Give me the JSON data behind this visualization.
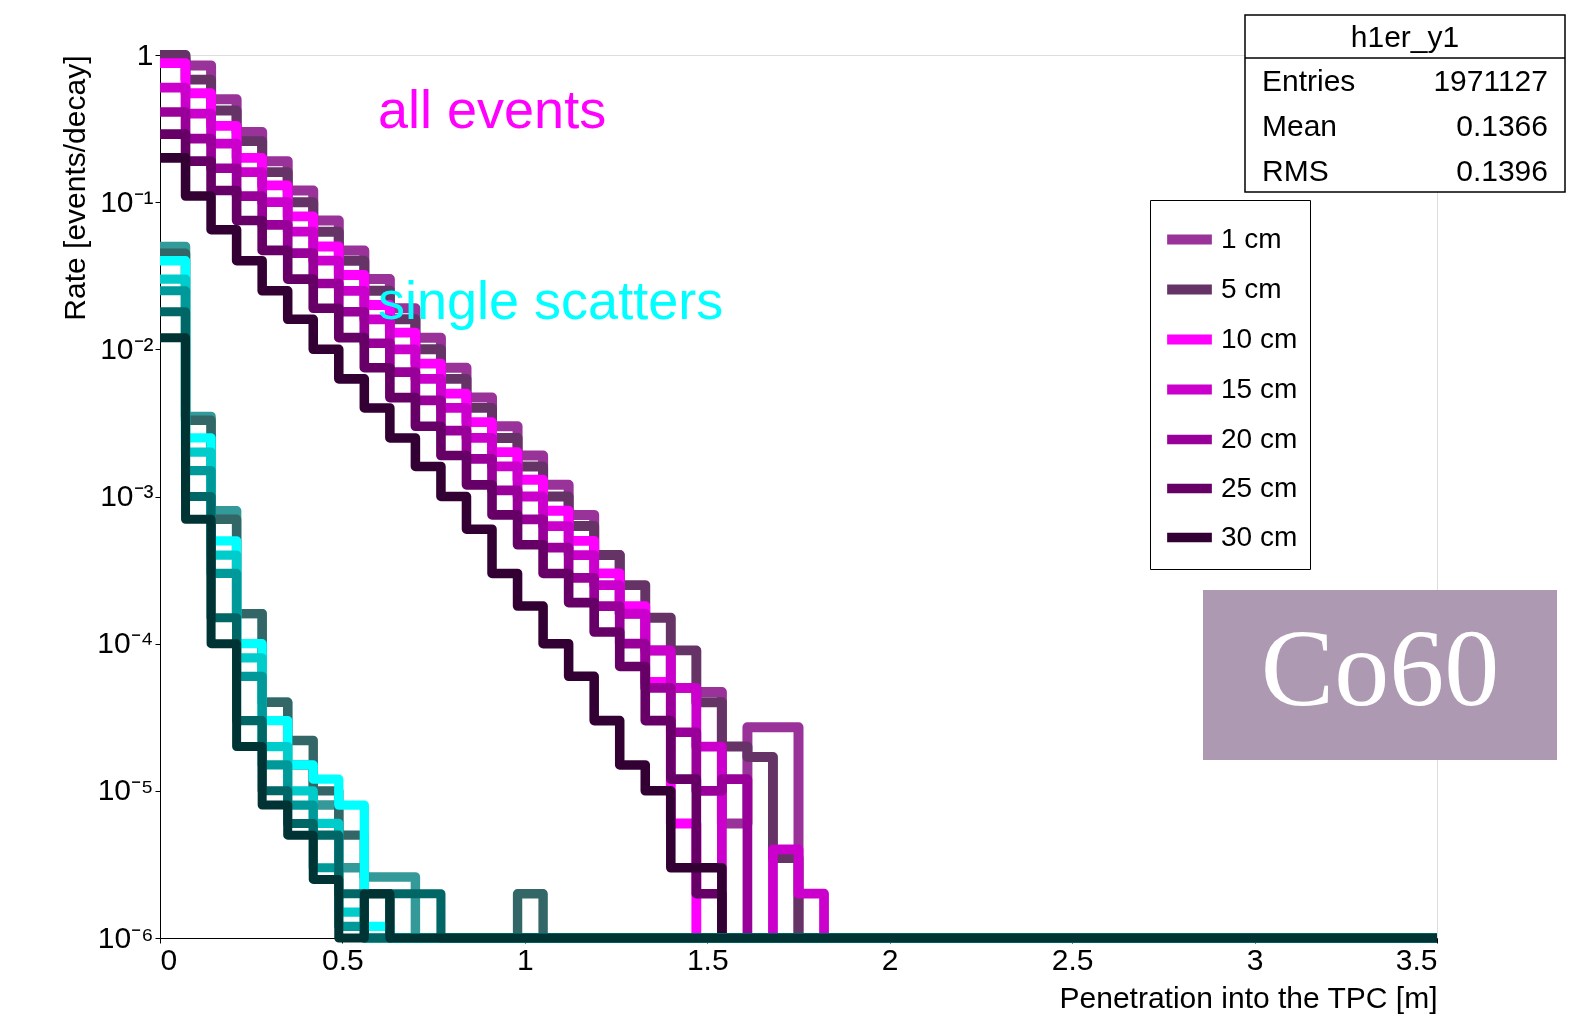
{
  "chart_data": {
    "type": "histogram",
    "xlabel": "Penetration into the TPC [m]",
    "ylabel": "Rate [events/decay]",
    "bins": [
      0,
      0.07,
      0.14,
      0.21,
      0.28,
      0.35,
      0.42,
      0.49,
      0.56,
      0.63,
      0.7,
      0.77,
      0.84,
      0.91,
      0.98,
      1.05,
      1.12,
      1.19,
      1.26,
      1.33,
      1.4,
      1.47,
      1.54,
      1.61,
      1.68,
      1.75,
      1.82,
      1.89,
      1.96,
      2.03,
      2.1,
      2.17,
      2.24,
      2.31,
      2.38,
      2.45,
      2.52,
      2.59,
      2.66,
      2.73,
      2.8,
      2.87,
      2.94,
      3.01,
      3.08,
      3.15,
      3.22,
      3.29,
      3.36,
      3.43,
      3.5
    ],
    "series": [
      {
        "name": "1 cm",
        "color": "#993399",
        "values": [
          0.95,
          0.85,
          0.5,
          0.3,
          0.19,
          0.12,
          0.075,
          0.047,
          0.03,
          0.019,
          0.012,
          0.0075,
          0.0047,
          0.003,
          0.0019,
          0.0012,
          0.00075,
          0.0004,
          0.00016,
          9e-05,
          5e-05,
          4.7e-05,
          6e-06,
          2.7e-05,
          2.7e-05,
          null,
          null,
          null,
          null,
          null,
          null,
          null,
          null,
          null,
          null,
          null,
          null,
          null,
          null,
          null,
          null,
          null,
          null,
          null,
          null,
          null,
          null,
          null,
          null,
          null
        ]
      },
      {
        "name": "5 cm",
        "color": "#663366",
        "values": [
          1.0,
          0.68,
          0.42,
          0.26,
          0.16,
          0.1,
          0.063,
          0.04,
          0.025,
          0.016,
          0.01,
          0.0063,
          0.004,
          0.0025,
          0.0016,
          0.001,
          0.00063,
          0.0004,
          0.00025,
          0.00015,
          9e-05,
          4e-05,
          2e-05,
          1.7e-05,
          3.5e-06,
          null,
          null,
          null,
          null,
          null,
          null,
          null,
          null,
          null,
          null,
          null,
          null,
          null,
          null,
          null,
          null,
          null,
          null,
          null,
          null,
          null,
          null,
          null,
          null,
          null
        ]
      },
      {
        "name": "10 cm",
        "color": "#ff00ff",
        "values": [
          0.88,
          0.55,
          0.33,
          0.2,
          0.13,
          0.08,
          0.05,
          0.032,
          0.02,
          0.013,
          0.008,
          0.005,
          0.0032,
          0.002,
          0.0013,
          0.0008,
          0.0005,
          0.0003,
          0.00018,
          5.5e-05,
          6e-06,
          null,
          null,
          null,
          null,
          null,
          null,
          null,
          null,
          null,
          null,
          null,
          null,
          null,
          null,
          null,
          null,
          null,
          null,
          null,
          null,
          null,
          null,
          null,
          null,
          null,
          null,
          null,
          null,
          null
        ]
      },
      {
        "name": "15 cm",
        "color": "#cc00cc",
        "values": [
          0.6,
          0.4,
          0.25,
          0.16,
          0.1,
          0.063,
          0.04,
          0.025,
          0.016,
          0.01,
          0.0063,
          0.004,
          0.0025,
          0.0016,
          0.001,
          0.00063,
          0.0004,
          0.00025,
          0.00016,
          9e-05,
          5e-05,
          2e-05,
          null,
          null,
          4e-06,
          2e-06,
          null,
          null,
          null,
          null,
          null,
          null,
          null,
          null,
          null,
          null,
          null,
          null,
          null,
          null,
          null,
          null,
          null,
          null,
          null,
          null,
          null,
          null,
          null,
          null
        ]
      },
      {
        "name": "20 cm",
        "color": "#990099",
        "values": [
          0.41,
          0.27,
          0.17,
          0.11,
          0.07,
          0.045,
          0.028,
          0.018,
          0.011,
          0.007,
          0.0045,
          0.0028,
          0.0018,
          0.0011,
          0.0007,
          0.00045,
          0.00028,
          0.00018,
          0.0001,
          5e-05,
          2.5e-05,
          1e-05,
          1.2e-05,
          null,
          null,
          null,
          null,
          null,
          null,
          null,
          null,
          null,
          null,
          null,
          null,
          null,
          null,
          null,
          null,
          null,
          null,
          null,
          null,
          null,
          null,
          null,
          null,
          null,
          null,
          null
        ]
      },
      {
        "name": "25 cm",
        "color": "#660066",
        "values": [
          0.29,
          0.19,
          0.12,
          0.075,
          0.047,
          0.03,
          0.019,
          0.012,
          0.0075,
          0.0047,
          0.003,
          0.0019,
          0.0012,
          0.00075,
          0.00047,
          0.0003,
          0.00019,
          0.00012,
          7e-05,
          3e-05,
          1.2e-05,
          2e-06,
          null,
          null,
          null,
          null,
          null,
          null,
          null,
          null,
          null,
          null,
          null,
          null,
          null,
          null,
          null,
          null,
          null,
          null,
          null,
          null,
          null,
          null,
          null,
          null,
          null,
          null,
          null,
          null
        ]
      },
      {
        "name": "30 cm",
        "color": "#330033",
        "values": [
          0.2,
          0.11,
          0.065,
          0.04,
          0.025,
          0.016,
          0.01,
          0.0063,
          0.004,
          0.0025,
          0.0016,
          0.001,
          0.0006,
          0.0003,
          0.00018,
          0.0001,
          6e-05,
          3e-05,
          1.5e-05,
          1e-05,
          3e-06,
          3e-06,
          null,
          null,
          null,
          null,
          null,
          null,
          null,
          null,
          null,
          null,
          null,
          null,
          null,
          null,
          null,
          null,
          null,
          null,
          null,
          null,
          null,
          null,
          null,
          null,
          null,
          null,
          null,
          null
        ]
      },
      {
        "color": "#339999",
        "values": [
          0.05,
          0.0035,
          0.0008,
          0.00016,
          4e-05,
          1.5e-05,
          8e-06,
          3e-06,
          2.6e-06,
          2.6e-06,
          null,
          null,
          null,
          null,
          null,
          null,
          null,
          null,
          null,
          null,
          null,
          null,
          null,
          null,
          null,
          null,
          null,
          null,
          null,
          null,
          null,
          null,
          null,
          null,
          null,
          null,
          null,
          null,
          null,
          null,
          null,
          null,
          null,
          null,
          null,
          null,
          null,
          null,
          null,
          null
        ]
      },
      {
        "color": "#336666",
        "values": [
          0.045,
          0.0033,
          0.0007,
          0.00016,
          4e-05,
          2.2e-05,
          1e-05,
          5e-06,
          2e-06,
          null,
          null,
          null,
          null,
          null,
          2e-06,
          null,
          null,
          null,
          null,
          null,
          null,
          null,
          null,
          null,
          null,
          null,
          null,
          null,
          null,
          null,
          null,
          null,
          null,
          null,
          null,
          null,
          null,
          null,
          null,
          null,
          null,
          null,
          null,
          null,
          null,
          null,
          null,
          null,
          null,
          null
        ]
      },
      {
        "color": "#00ffff",
        "values": [
          0.04,
          0.0025,
          0.0005,
          0.0001,
          3e-05,
          1.5e-05,
          1.2e-05,
          8e-06,
          1.2e-06,
          null,
          null,
          null,
          null,
          null,
          null,
          null,
          null,
          null,
          null,
          null,
          null,
          null,
          null,
          null,
          null,
          null,
          null,
          null,
          null,
          null,
          null,
          null,
          null,
          null,
          null,
          null,
          null,
          null,
          null,
          null,
          null,
          null,
          null,
          null,
          null,
          null,
          null,
          null,
          null,
          null
        ]
      },
      {
        "color": "#00cccc",
        "values": [
          0.03,
          0.002,
          0.0004,
          8e-05,
          2e-05,
          1e-05,
          6e-06,
          1.5e-06,
          null,
          null,
          null,
          null,
          null,
          null,
          null,
          null,
          null,
          null,
          null,
          null,
          null,
          null,
          null,
          null,
          null,
          null,
          null,
          null,
          null,
          null,
          null,
          null,
          null,
          null,
          null,
          null,
          null,
          null,
          null,
          null,
          null,
          null,
          null,
          null,
          null,
          null,
          null,
          null,
          null,
          null
        ]
      },
      {
        "color": "#009999",
        "values": [
          0.025,
          0.0015,
          0.0003,
          6e-05,
          1.5e-05,
          8e-06,
          3e-06,
          1.2e-06,
          null,
          null,
          null,
          null,
          null,
          null,
          null,
          null,
          null,
          null,
          null,
          null,
          null,
          null,
          null,
          null,
          null,
          null,
          null,
          null,
          null,
          null,
          null,
          null,
          null,
          null,
          null,
          null,
          null,
          null,
          null,
          null,
          null,
          null,
          null,
          null,
          null,
          null,
          null,
          null,
          null,
          null
        ]
      },
      {
        "color": "#006666",
        "values": [
          0.018,
          0.001,
          0.00015,
          3e-05,
          1e-05,
          6e-06,
          5e-06,
          2e-06,
          null,
          2e-06,
          2e-06,
          null,
          null,
          null,
          null,
          null,
          null,
          null,
          null,
          null,
          null,
          null,
          null,
          null,
          null,
          null,
          null,
          null,
          null,
          null,
          null,
          null,
          null,
          null,
          null,
          null,
          null,
          null,
          null,
          null,
          null,
          null,
          null,
          null,
          null,
          null,
          null,
          null,
          null,
          null
        ]
      },
      {
        "color": "#003333",
        "values": [
          0.012,
          0.0007,
          0.0001,
          2e-05,
          8e-06,
          5e-06,
          2.5e-06,
          null,
          2e-06,
          null,
          null,
          null,
          null,
          null,
          null,
          null,
          null,
          null,
          null,
          null,
          null,
          null,
          null,
          null,
          null,
          null,
          null,
          null,
          null,
          null,
          null,
          null,
          null,
          null,
          null,
          null,
          null,
          null,
          null,
          null,
          null,
          null,
          null,
          null,
          null,
          null,
          null,
          null,
          null,
          null
        ]
      }
    ],
    "xlim": [
      0,
      3.5
    ],
    "xticks": [
      0,
      0.5,
      1,
      1.5,
      2,
      2.5,
      3,
      3.5
    ],
    "ylim": [
      1e-06,
      1
    ],
    "log": true,
    "yticks": [
      {
        "value": 1e-06,
        "label": "10⁻⁶"
      },
      {
        "value": 1e-05,
        "label": "10⁻⁵"
      },
      {
        "value": 0.0001,
        "label": "10⁻⁴"
      },
      {
        "value": 0.001,
        "label": "10⁻³"
      },
      {
        "value": 0.01,
        "label": "10⁻²"
      },
      {
        "value": 0.1,
        "label": "10⁻¹"
      },
      1
    ],
    "legend": "top right",
    "annotations": [
      "all events",
      "single scatters",
      "h1er_y1",
      "Entries",
      "1971127",
      "Mean",
      "0.1366",
      "RMS",
      "0.1396",
      "Co60"
    ]
  }
}
